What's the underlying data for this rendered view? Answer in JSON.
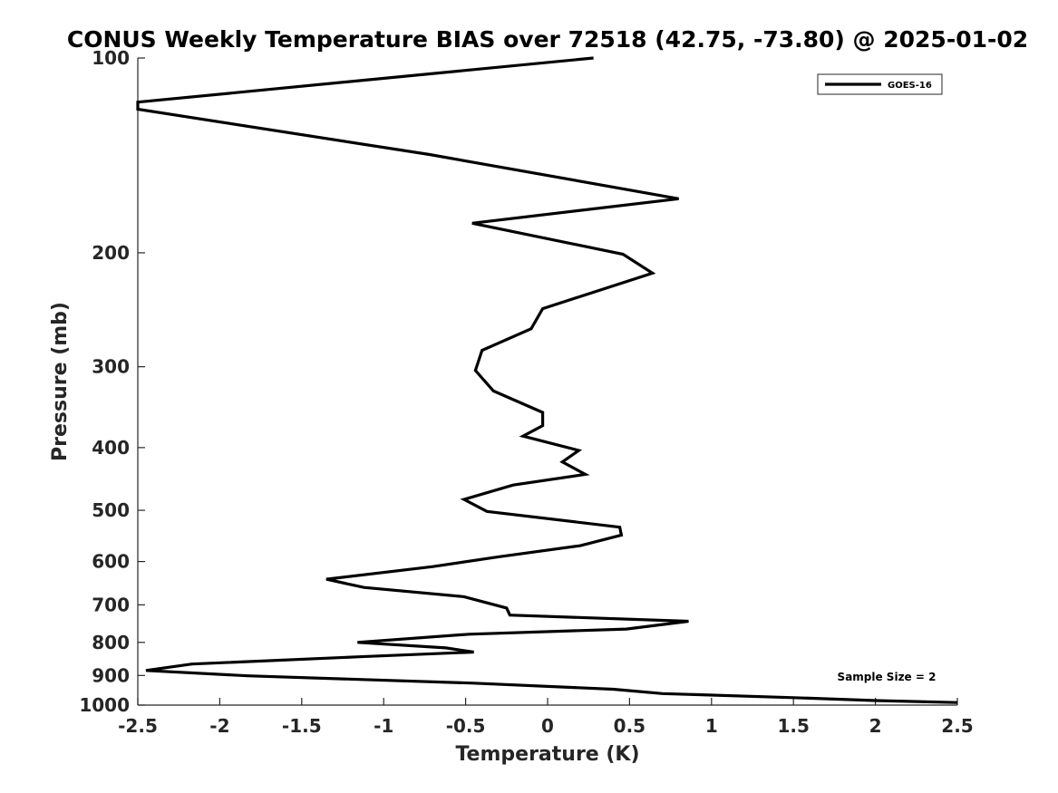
{
  "chart_data": {
    "type": "line",
    "title": "CONUS Weekly Temperature BIAS over 72518 (42.75, -73.80) @ 2025-01-02",
    "xlabel": "Temperature (K)",
    "ylabel": "Pressure (mb)",
    "xlim": [
      -2.5,
      2.5
    ],
    "ylim": [
      100,
      1000
    ],
    "y_scale": "log",
    "y_reversed": true,
    "x_ticks": [
      -2.5,
      -2,
      -1.5,
      -1,
      -0.5,
      0,
      0.5,
      1,
      1.5,
      2,
      2.5
    ],
    "x_tick_labels": [
      "-2.5",
      "-2",
      "-1.5",
      "-1",
      "-0.5",
      "0",
      "0.5",
      "1",
      "1.5",
      "2",
      "2.5"
    ],
    "y_ticks": [
      100,
      200,
      300,
      400,
      500,
      600,
      700,
      800,
      900,
      1000
    ],
    "y_tick_labels": [
      "100",
      "200",
      "300",
      "400",
      "500",
      "600",
      "700",
      "800",
      "900",
      "1000"
    ],
    "grid": false,
    "legend_position": "top-right",
    "annotation": "Sample Size = 2",
    "series": [
      {
        "name": "GOES-16",
        "color": "#000000",
        "points": [
          {
            "x": 0.28,
            "p": 100
          },
          {
            "x": -2.5,
            "p": 117
          },
          {
            "x": -2.5,
            "p": 120
          },
          {
            "x": -0.72,
            "p": 141
          },
          {
            "x": 0.8,
            "p": 165
          },
          {
            "x": -0.46,
            "p": 180
          },
          {
            "x": 0.46,
            "p": 201
          },
          {
            "x": 0.64,
            "p": 215
          },
          {
            "x": -0.03,
            "p": 244
          },
          {
            "x": -0.1,
            "p": 262
          },
          {
            "x": -0.4,
            "p": 283
          },
          {
            "x": -0.44,
            "p": 304
          },
          {
            "x": -0.33,
            "p": 327
          },
          {
            "x": -0.03,
            "p": 353
          },
          {
            "x": -0.03,
            "p": 370
          },
          {
            "x": -0.15,
            "p": 384
          },
          {
            "x": 0.19,
            "p": 404
          },
          {
            "x": 0.09,
            "p": 421
          },
          {
            "x": 0.23,
            "p": 440
          },
          {
            "x": -0.21,
            "p": 457
          },
          {
            "x": -0.51,
            "p": 481
          },
          {
            "x": -0.37,
            "p": 502
          },
          {
            "x": 0.44,
            "p": 531
          },
          {
            "x": 0.45,
            "p": 546
          },
          {
            "x": 0.2,
            "p": 567
          },
          {
            "x": -0.3,
            "p": 590
          },
          {
            "x": -0.7,
            "p": 611
          },
          {
            "x": -1.35,
            "p": 639
          },
          {
            "x": -1.12,
            "p": 658
          },
          {
            "x": -0.51,
            "p": 680
          },
          {
            "x": -0.25,
            "p": 708
          },
          {
            "x": -0.23,
            "p": 726
          },
          {
            "x": 0.86,
            "p": 742
          },
          {
            "x": 0.48,
            "p": 763
          },
          {
            "x": -0.48,
            "p": 777
          },
          {
            "x": -1.16,
            "p": 800
          },
          {
            "x": -0.62,
            "p": 816
          },
          {
            "x": -0.45,
            "p": 828
          },
          {
            "x": -1.15,
            "p": 842
          },
          {
            "x": -2.17,
            "p": 864
          },
          {
            "x": -2.45,
            "p": 884
          },
          {
            "x": -1.83,
            "p": 901
          },
          {
            "x": -0.45,
            "p": 925
          },
          {
            "x": 0.4,
            "p": 945
          },
          {
            "x": 0.7,
            "p": 960
          },
          {
            "x": 1.5,
            "p": 974
          },
          {
            "x": 2.0,
            "p": 984
          },
          {
            "x": 2.5,
            "p": 991
          }
        ]
      }
    ]
  }
}
